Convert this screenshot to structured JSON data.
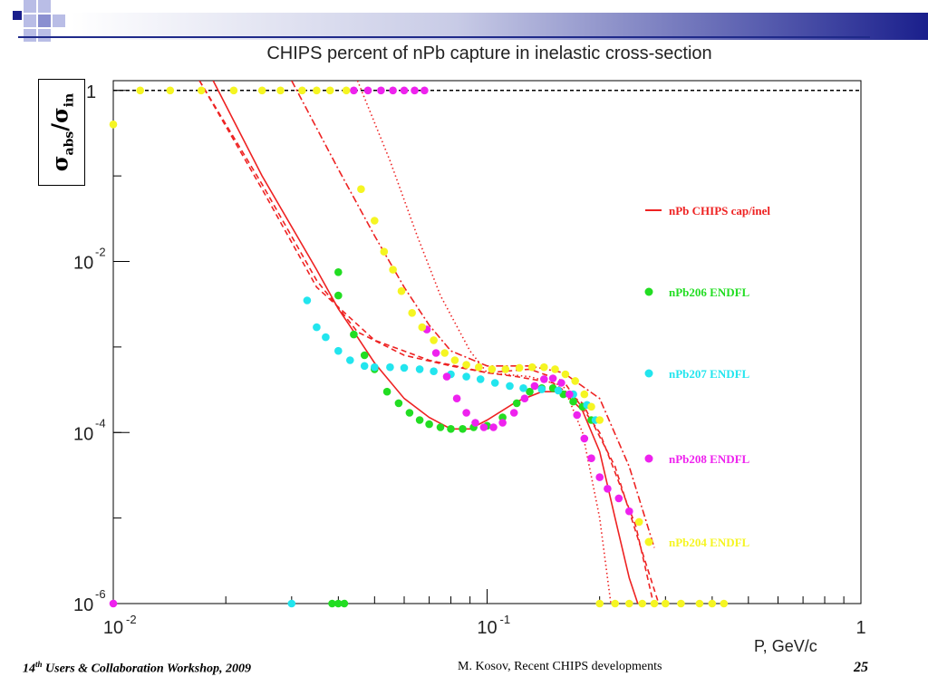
{
  "slide": {
    "title": "CHIPS percent of nPb capture in inelastic cross-section",
    "ylabel_num": "σ",
    "ylabel_num_sub": "abs",
    "ylabel_den": "σ",
    "ylabel_den_sub": "in",
    "x_unit": "P, GeV/c",
    "footer_left_pre": "14",
    "footer_left_sup": "th",
    "footer_left_post": " Users & Collaboration Workshop, 2009",
    "footer_middle": "M. Kosov,  Recent CHIPS developments",
    "page_number": "25",
    "colors": {
      "title_bar": "#1a1f8c",
      "rule": "#1f2a8a"
    }
  },
  "chart_data": {
    "type": "scatter",
    "title": "CHIPS percent of nPb capture in inelastic cross-section",
    "xlabel": "P, GeV/c",
    "ylabel": "σabs/σin",
    "x_scale": "log",
    "y_scale": "log",
    "xlim": [
      0.01,
      1
    ],
    "ylim": [
      1e-06,
      1.3
    ],
    "x_ticks": [
      {
        "v": 0.01,
        "base": "10",
        "exp": "-2"
      },
      {
        "v": 0.1,
        "base": "10",
        "exp": "-1"
      },
      {
        "v": 1,
        "base": "1",
        "exp": ""
      }
    ],
    "y_ticks": [
      {
        "v": 1,
        "base": "1",
        "exp": ""
      },
      {
        "v": 0.01,
        "base": "10",
        "exp": "-2"
      },
      {
        "v": 0.0001,
        "base": "10",
        "exp": "-4"
      },
      {
        "v": 1e-06,
        "base": "10",
        "exp": "-6"
      }
    ],
    "reference_line": {
      "y": 1,
      "style": "dashed",
      "color": "#000000"
    },
    "legend_position": "right",
    "series": [
      {
        "name": "nPb CHIPS cap/inel",
        "kind": "line",
        "style": "solid",
        "color": "#ee2222",
        "points": [
          [
            0.0185,
            1.3
          ],
          [
            0.025,
            0.1
          ],
          [
            0.035,
            0.008
          ],
          [
            0.04,
            0.0028
          ],
          [
            0.045,
            0.0013
          ],
          [
            0.05,
            0.00065
          ],
          [
            0.06,
            0.00025
          ],
          [
            0.07,
            0.00015
          ],
          [
            0.08,
            0.00011
          ],
          [
            0.09,
            0.00011
          ],
          [
            0.1,
            0.00014
          ],
          [
            0.12,
            0.00023
          ],
          [
            0.14,
            0.0003
          ],
          [
            0.16,
            0.0003
          ],
          [
            0.18,
            0.00018
          ],
          [
            0.2,
            6e-05
          ],
          [
            0.22,
            1e-05
          ],
          [
            0.24,
            2e-06
          ],
          [
            0.255,
            9e-07
          ]
        ]
      },
      {
        "name": "",
        "kind": "line",
        "style": "dashed",
        "color": "#ee2222",
        "points": [
          [
            0.017,
            1.3
          ],
          [
            0.025,
            0.08
          ],
          [
            0.035,
            0.006
          ],
          [
            0.045,
            0.0015
          ],
          [
            0.06,
            0.0008
          ],
          [
            0.08,
            0.0006
          ],
          [
            0.1,
            0.0005
          ],
          [
            0.12,
            0.00045
          ],
          [
            0.15,
            0.00038
          ],
          [
            0.18,
            0.00022
          ],
          [
            0.22,
            4e-05
          ],
          [
            0.26,
            4e-06
          ],
          [
            0.29,
            9e-07
          ]
        ]
      },
      {
        "name": "",
        "kind": "line",
        "style": "dashed",
        "color": "#ee2222",
        "points": [
          [
            0.017,
            1.3
          ],
          [
            0.025,
            0.07
          ],
          [
            0.035,
            0.005
          ],
          [
            0.05,
            0.0012
          ],
          [
            0.07,
            0.0007
          ],
          [
            0.1,
            0.0005
          ],
          [
            0.13,
            0.00055
          ],
          [
            0.16,
            0.0004
          ],
          [
            0.2,
            0.0001
          ],
          [
            0.25,
            8e-06
          ],
          [
            0.28,
            9e-07
          ]
        ]
      },
      {
        "name": "",
        "kind": "line",
        "style": "dashdot",
        "color": "#ee2222",
        "points": [
          [
            0.03,
            1.3
          ],
          [
            0.04,
            0.12
          ],
          [
            0.05,
            0.02
          ],
          [
            0.06,
            0.005
          ],
          [
            0.07,
            0.0018
          ],
          [
            0.08,
            0.0009
          ],
          [
            0.1,
            0.0006
          ],
          [
            0.13,
            0.0006
          ],
          [
            0.16,
            0.0005
          ],
          [
            0.2,
            0.00025
          ],
          [
            0.24,
            4e-05
          ],
          [
            0.28,
            4.5e-06
          ]
        ]
      },
      {
        "name": "",
        "kind": "line",
        "style": "dotted",
        "color": "#ee2222",
        "points": [
          [
            0.045,
            1.3
          ],
          [
            0.055,
            0.15
          ],
          [
            0.065,
            0.02
          ],
          [
            0.075,
            0.004
          ],
          [
            0.09,
            0.0009
          ],
          [
            0.1,
            0.0005
          ],
          [
            0.13,
            0.00045
          ],
          [
            0.16,
            0.00035
          ],
          [
            0.18,
            0.0001
          ],
          [
            0.2,
            1e-05
          ],
          [
            0.215,
            9e-07
          ]
        ]
      },
      {
        "name": "nPb206 ENDFL",
        "kind": "points",
        "color": "#22dd22",
        "points": [
          [
            0.0385,
            1e-06
          ],
          [
            0.04,
            1e-06
          ],
          [
            0.0415,
            1e-06
          ],
          [
            0.04,
            0.0075
          ],
          [
            0.04,
            0.004
          ],
          [
            0.044,
            0.0014
          ],
          [
            0.047,
            0.0008
          ],
          [
            0.05,
            0.00055
          ],
          [
            0.054,
            0.0003
          ],
          [
            0.058,
            0.00022
          ],
          [
            0.062,
            0.00017
          ],
          [
            0.066,
            0.00014
          ],
          [
            0.07,
            0.000125
          ],
          [
            0.075,
            0.000115
          ],
          [
            0.08,
            0.00011
          ],
          [
            0.086,
            0.00011
          ],
          [
            0.092,
            0.000115
          ],
          [
            0.1,
            0.00012
          ],
          [
            0.11,
            0.00015
          ],
          [
            0.12,
            0.00022
          ],
          [
            0.13,
            0.0003
          ],
          [
            0.14,
            0.00033
          ],
          [
            0.15,
            0.00033
          ],
          [
            0.16,
            0.00028
          ],
          [
            0.17,
            0.00023
          ],
          [
            0.18,
            0.0002
          ],
          [
            0.19,
            0.00014
          ]
        ]
      },
      {
        "name": "nPb207 ENDFL",
        "kind": "points",
        "color": "#22e5ee",
        "points": [
          [
            0.03,
            1e-06
          ],
          [
            0.033,
            0.0035
          ],
          [
            0.035,
            0.0017
          ],
          [
            0.037,
            0.0013
          ],
          [
            0.04,
            0.0009
          ],
          [
            0.043,
            0.0007
          ],
          [
            0.047,
            0.0006
          ],
          [
            0.05,
            0.00058
          ],
          [
            0.055,
            0.00058
          ],
          [
            0.06,
            0.00057
          ],
          [
            0.066,
            0.00055
          ],
          [
            0.072,
            0.00052
          ],
          [
            0.08,
            0.00048
          ],
          [
            0.088,
            0.00045
          ],
          [
            0.096,
            0.00042
          ],
          [
            0.105,
            0.00038
          ],
          [
            0.115,
            0.00035
          ],
          [
            0.125,
            0.00033
          ],
          [
            0.14,
            0.00032
          ],
          [
            0.155,
            0.00031
          ],
          [
            0.17,
            0.00028
          ],
          [
            0.185,
            0.00021
          ],
          [
            0.195,
            0.00014
          ]
        ]
      },
      {
        "name": "nPb208 ENDFL",
        "kind": "points",
        "color": "#ee22ee",
        "points": [
          [
            0.01,
            1e-06
          ],
          [
            0.044,
            1
          ],
          [
            0.048,
            1
          ],
          [
            0.052,
            1
          ],
          [
            0.056,
            1
          ],
          [
            0.06,
            1
          ],
          [
            0.064,
            1
          ],
          [
            0.068,
            1
          ],
          [
            0.069,
            0.0016
          ],
          [
            0.073,
            0.00085
          ],
          [
            0.078,
            0.00045
          ],
          [
            0.083,
            0.00025
          ],
          [
            0.088,
            0.00017
          ],
          [
            0.093,
            0.00013
          ],
          [
            0.098,
            0.000115
          ],
          [
            0.104,
            0.000115
          ],
          [
            0.11,
            0.00013
          ],
          [
            0.118,
            0.00017
          ],
          [
            0.126,
            0.00025
          ],
          [
            0.134,
            0.00035
          ],
          [
            0.142,
            0.00042
          ],
          [
            0.15,
            0.00043
          ],
          [
            0.158,
            0.00038
          ],
          [
            0.166,
            0.00028
          ],
          [
            0.174,
            0.00016
          ],
          [
            0.182,
            8.5e-05
          ],
          [
            0.19,
            5e-05
          ],
          [
            0.2,
            3e-05
          ],
          [
            0.21,
            2.2e-05
          ],
          [
            0.225,
            1.7e-05
          ],
          [
            0.24,
            1.2e-05
          ]
        ]
      },
      {
        "name": "nPb204 ENDFL",
        "kind": "points",
        "color": "#f5f522",
        "points": [
          [
            0.01,
            0.4
          ],
          [
            0.0118,
            1
          ],
          [
            0.0142,
            1
          ],
          [
            0.0172,
            1
          ],
          [
            0.021,
            1
          ],
          [
            0.025,
            1
          ],
          [
            0.028,
            1
          ],
          [
            0.032,
            1
          ],
          [
            0.035,
            1
          ],
          [
            0.038,
            1
          ],
          [
            0.042,
            1
          ],
          [
            0.046,
            0.07
          ],
          [
            0.05,
            0.03
          ],
          [
            0.053,
            0.013
          ],
          [
            0.056,
            0.008
          ],
          [
            0.059,
            0.0045
          ],
          [
            0.063,
            0.0025
          ],
          [
            0.067,
            0.0017
          ],
          [
            0.072,
            0.0012
          ],
          [
            0.077,
            0.00085
          ],
          [
            0.082,
            0.0007
          ],
          [
            0.088,
            0.00062
          ],
          [
            0.095,
            0.00058
          ],
          [
            0.103,
            0.00055
          ],
          [
            0.112,
            0.00055
          ],
          [
            0.122,
            0.00057
          ],
          [
            0.132,
            0.00058
          ],
          [
            0.142,
            0.00058
          ],
          [
            0.152,
            0.00055
          ],
          [
            0.162,
            0.00048
          ],
          [
            0.172,
            0.0004
          ],
          [
            0.182,
            0.00028
          ],
          [
            0.19,
            0.0002
          ],
          [
            0.2,
            0.00014
          ],
          [
            0.255,
            9e-06
          ],
          [
            0.2,
            1e-06
          ],
          [
            0.22,
            1e-06
          ],
          [
            0.24,
            1e-06
          ],
          [
            0.26,
            1e-06
          ],
          [
            0.28,
            1e-06
          ],
          [
            0.3,
            1e-06
          ],
          [
            0.33,
            1e-06
          ],
          [
            0.37,
            1e-06
          ],
          [
            0.4,
            1e-06
          ],
          [
            0.43,
            1e-06
          ]
        ]
      }
    ]
  }
}
